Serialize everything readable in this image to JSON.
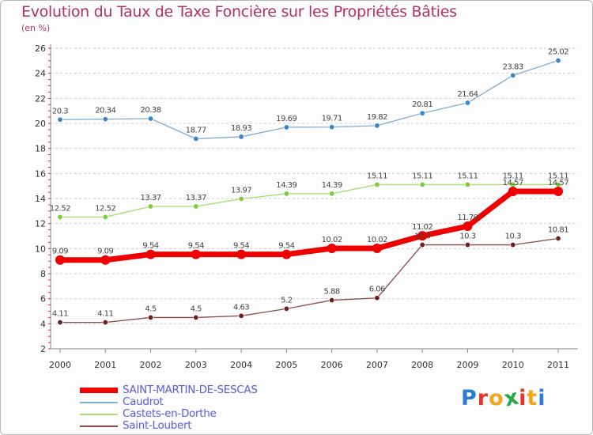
{
  "title": "Evolution du Taux de Taxe Foncière sur les Propriétés Bâties",
  "unit_label": "(en %)",
  "logo": {
    "letters": [
      "P",
      "r",
      "o",
      "x",
      "i",
      "t",
      "i"
    ],
    "colors": [
      "#2a7fd4",
      "#e8342c",
      "#f2a61c",
      "#2aa84a",
      "#e8342c",
      "#f2a61c",
      "#2a7fd4"
    ]
  },
  "chart_data": {
    "type": "line",
    "title": "Evolution du Taux de Taxe Foncière sur les Propriétés Bâties",
    "ylabel": "(en %)",
    "xlabel": "",
    "x": [
      "2000",
      "2001",
      "2002",
      "2003",
      "2004",
      "2005",
      "2006",
      "2007",
      "2008",
      "2009",
      "2010",
      "2011"
    ],
    "ylim": [
      2,
      26
    ],
    "yticks": [
      "2",
      "4",
      "6",
      "8",
      "10",
      "12",
      "14",
      "16",
      "18",
      "20",
      "22",
      "24",
      "26"
    ],
    "grid": "horizontal dashed",
    "legend_position": "bottom-left",
    "series": [
      {
        "name": "SAINT-MARTIN-DE-SESCAS",
        "color": "#ee0000",
        "point_color": "#ee0000",
        "width": 7,
        "values": [
          9.09,
          9.09,
          9.54,
          9.54,
          9.54,
          9.54,
          10.02,
          10.02,
          11.02,
          11.79,
          14.57,
          14.57
        ],
        "labels": [
          "9.09",
          "9.09",
          "9.54",
          "9.54",
          "9.54",
          "9.54",
          "10.02",
          "10.02",
          "11.02",
          "11.79",
          "14.57",
          "14.57"
        ]
      },
      {
        "name": "Caudrot",
        "color": "#7fadd6",
        "point_color": "#3a85c6",
        "width": 1.3,
        "values": [
          20.3,
          20.34,
          20.38,
          18.77,
          18.93,
          19.69,
          19.71,
          19.82,
          20.81,
          21.64,
          23.83,
          25.02
        ],
        "labels": [
          "20.3",
          "20.34",
          "20.38",
          "18.77",
          "18.93",
          "19.69",
          "19.71",
          "19.82",
          "20.81",
          "21.64",
          "23.83",
          "25.02"
        ]
      },
      {
        "name": "Castets-en-Dorthe",
        "color": "#a6de72",
        "point_color": "#7ccd3c",
        "width": 1.3,
        "values": [
          12.52,
          12.52,
          13.37,
          13.37,
          13.97,
          14.39,
          14.39,
          15.11,
          15.11,
          15.11,
          15.11,
          15.11
        ],
        "labels": [
          "12.52",
          "12.52",
          "13.37",
          "13.37",
          "13.97",
          "14.39",
          "14.39",
          "15.11",
          "15.11",
          "15.11",
          "15.11",
          "15.11"
        ]
      },
      {
        "name": "Saint-Loubert",
        "color": "#8a4a4a",
        "point_color": "#6e1f1f",
        "width": 1.3,
        "values": [
          4.11,
          4.11,
          4.5,
          4.5,
          4.63,
          5.2,
          5.88,
          6.06,
          10.3,
          10.3,
          10.3,
          10.81
        ],
        "labels": [
          "4.11",
          "4.11",
          "4.5",
          "4.5",
          "4.63",
          "5.2",
          "5.88",
          "6.06",
          "10.3",
          "10.3",
          "10.3",
          "10.81"
        ]
      }
    ]
  }
}
